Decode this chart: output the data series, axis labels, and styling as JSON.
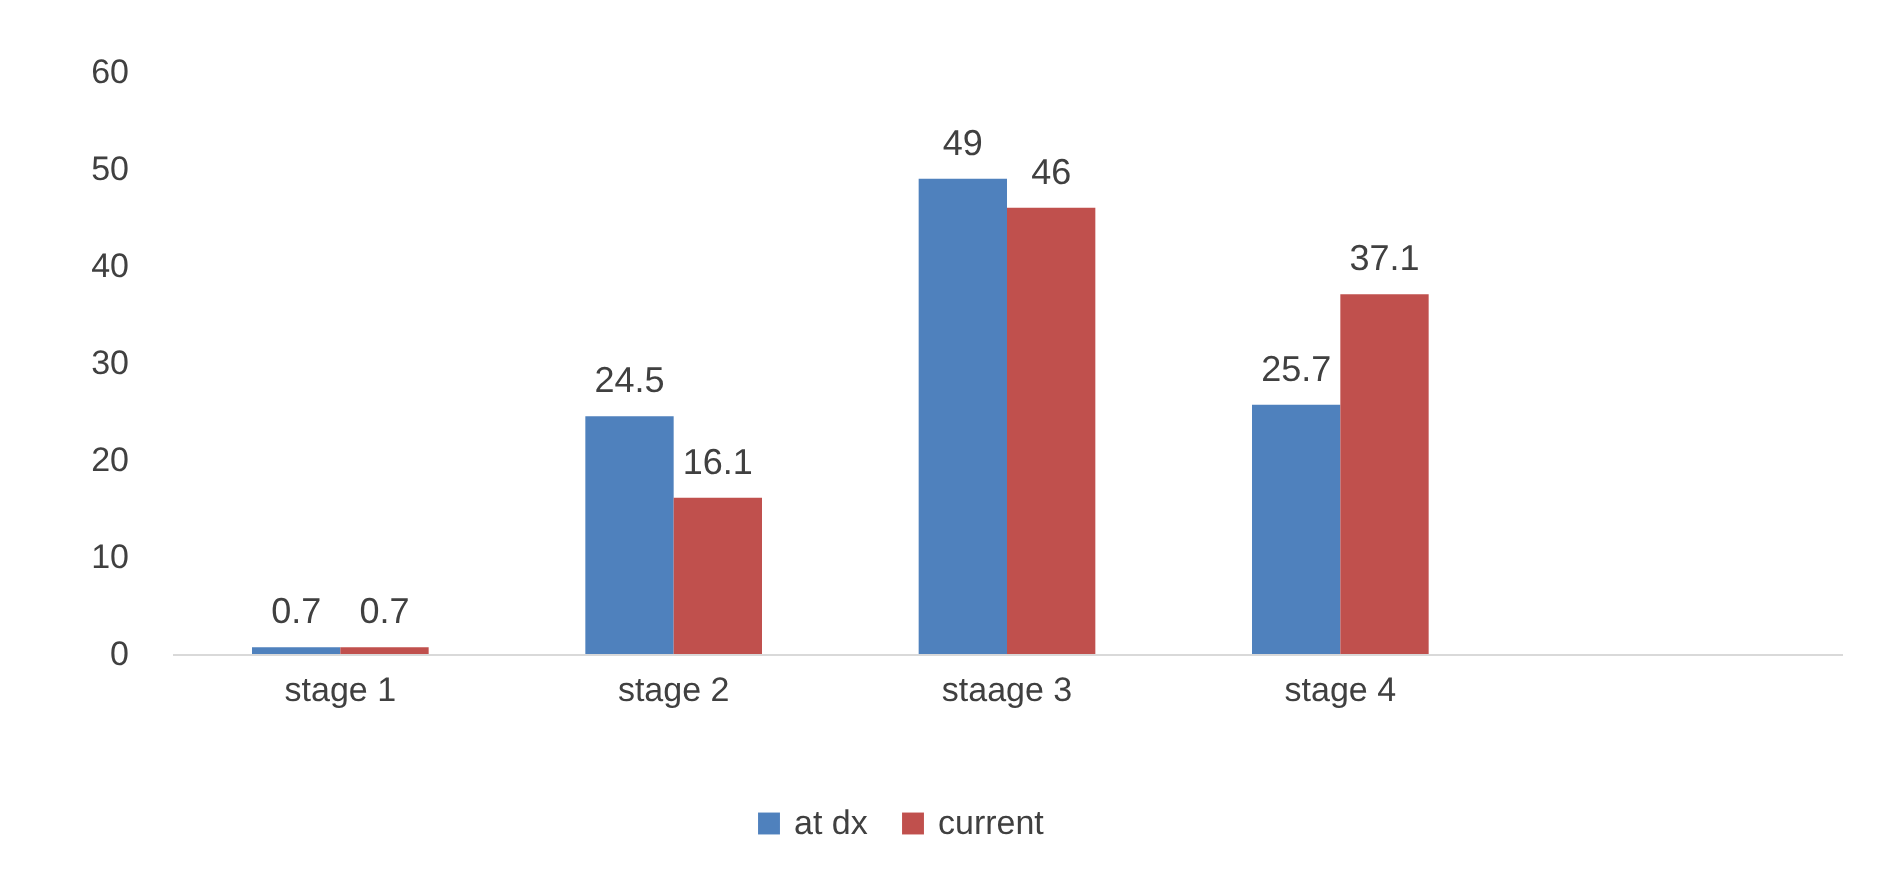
{
  "chart_data": {
    "type": "bar",
    "categories": [
      "stage 1",
      "stage  2",
      "staage 3",
      "stage 4",
      null
    ],
    "series": [
      {
        "name": "at dx",
        "color": "#4f81bd",
        "values": [
          0.7,
          24.5,
          49,
          25.7,
          null
        ]
      },
      {
        "name": "current",
        "color": "#c0504d",
        "values": [
          0.7,
          16.1,
          46,
          37.1,
          null
        ]
      }
    ],
    "ylim": [
      0,
      60
    ],
    "yticks": [
      0,
      10,
      20,
      30,
      40,
      50,
      60
    ],
    "data_labels": true,
    "legend": "bottom"
  }
}
